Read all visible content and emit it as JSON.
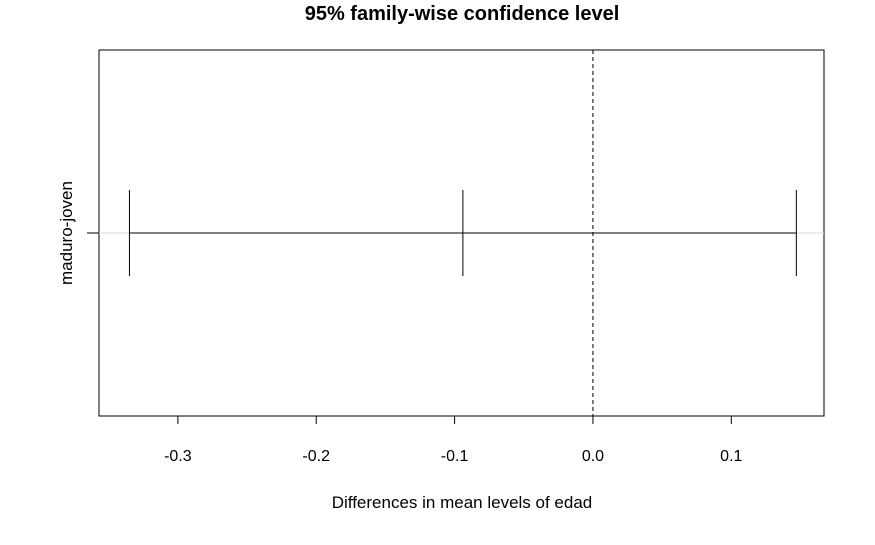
{
  "chart_data": {
    "type": "interval",
    "title": "95% family-wise confidence level",
    "xlabel": "Differences in mean levels of edad",
    "ylabel": "",
    "x_ticks": [
      -0.3,
      -0.2,
      -0.1,
      0.0,
      0.1
    ],
    "x_tick_labels": [
      "-0.3",
      "-0.2",
      "-0.1",
      "0.0",
      "0.1"
    ],
    "xlim": [
      -0.357,
      0.167
    ],
    "reference_line": 0.0,
    "categories": [
      "maduro-joven"
    ],
    "intervals": [
      {
        "label": "maduro-joven",
        "lower": -0.335,
        "estimate": -0.094,
        "upper": 0.147
      }
    ],
    "grid": false,
    "colors": {
      "line": "#000000",
      "guide": "#d9d9d9"
    }
  }
}
